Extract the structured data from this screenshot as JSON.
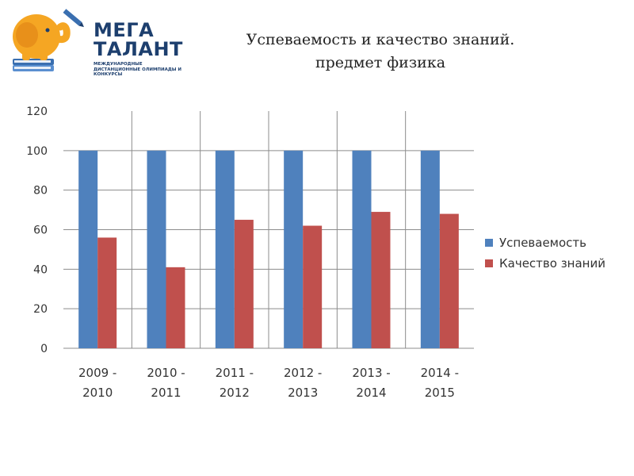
{
  "logo": {
    "line1": "МЕГА",
    "line2": "ТАЛАНТ",
    "subtitle": "Международные дистанционные олимпиады и конкурсы"
  },
  "title": {
    "line1": "Успеваемость и качество знаний.",
    "line2": "предмет физика"
  },
  "colors": {
    "series1": "#4f81bd",
    "series2": "#c0504d",
    "grid": "#8c8c8c",
    "text": "#333333"
  },
  "chart_data": {
    "type": "bar",
    "categories": [
      [
        "2009 -",
        "2010"
      ],
      [
        "2010 -",
        "2011"
      ],
      [
        "2011 -",
        "2012"
      ],
      [
        "2012 -",
        "2013"
      ],
      [
        "2013 -",
        "2014"
      ],
      [
        "2014 -",
        "2015"
      ]
    ],
    "series": [
      {
        "name": "Успеваемость",
        "values": [
          100,
          100,
          100,
          100,
          100,
          100
        ]
      },
      {
        "name": "Качество знаний",
        "values": [
          56,
          41,
          65,
          62,
          69,
          68
        ]
      }
    ],
    "ylim": [
      0,
      120
    ],
    "yticks": [
      "0",
      "20",
      "40",
      "60",
      "80",
      "100",
      "120"
    ],
    "xlabel": "",
    "ylabel": "",
    "grid": true,
    "legend": "right"
  }
}
